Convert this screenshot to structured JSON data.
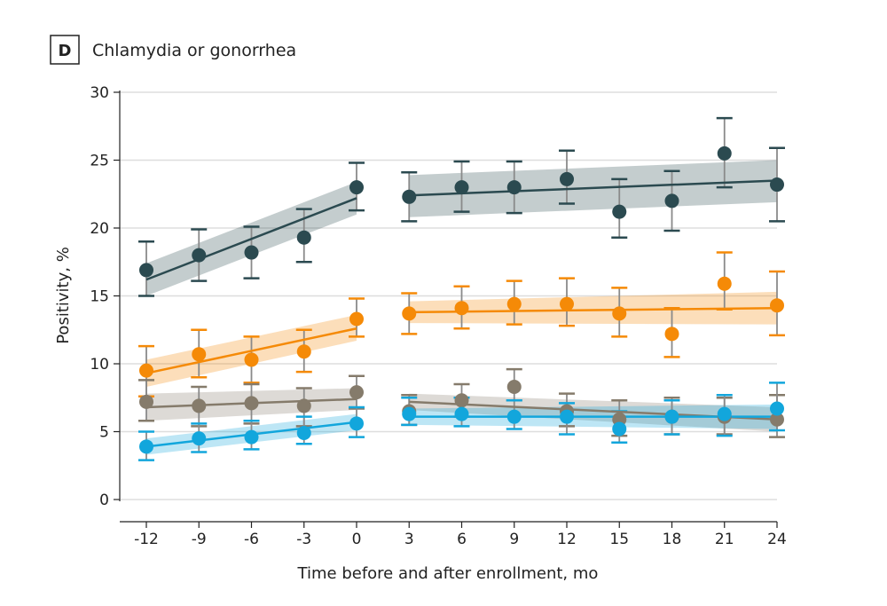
{
  "chart_data": {
    "type": "line",
    "panel_label": "D",
    "title": "Chlamydia or gonorrhea",
    "xlabel": "Time before and after enrollment, mo",
    "ylabel": "Positivity, %",
    "xlim": [
      -12,
      24
    ],
    "ylim": [
      0,
      30
    ],
    "x_ticks": [
      -12,
      -9,
      -6,
      -3,
      0,
      3,
      6,
      9,
      12,
      15,
      18,
      21,
      24
    ],
    "y_ticks": [
      0,
      5,
      10,
      15,
      20,
      25,
      30
    ],
    "grid": "horizontal",
    "x": [
      -12,
      -9,
      -6,
      -3,
      0,
      3,
      6,
      9,
      12,
      15,
      18,
      21,
      24
    ],
    "series": [
      {
        "color": "#2b4a50",
        "values": [
          16.9,
          18.0,
          18.2,
          19.3,
          23.0,
          22.3,
          23.0,
          23.0,
          23.6,
          21.2,
          22.0,
          25.5,
          23.2
        ],
        "ci_upper": [
          19.0,
          19.9,
          20.1,
          21.4,
          24.8,
          24.1,
          24.9,
          24.9,
          25.7,
          23.6,
          24.2,
          28.1,
          25.9
        ],
        "ci_lower": [
          15.0,
          16.1,
          16.3,
          17.5,
          21.3,
          20.5,
          21.2,
          21.1,
          21.8,
          19.3,
          19.8,
          23.0,
          20.5
        ],
        "fits": [
          {
            "x": [
              -12,
              0
            ],
            "y": [
              16.2,
              22.2
            ],
            "lo": [
              15.0,
              21.0
            ],
            "hi": [
              17.4,
              23.4
            ]
          },
          {
            "x": [
              3,
              24
            ],
            "y": [
              22.4,
              23.5
            ],
            "lo": [
              20.8,
              21.9
            ],
            "hi": [
              23.9,
              25.0
            ]
          }
        ]
      },
      {
        "color": "#f58a07",
        "values": [
          9.5,
          10.7,
          10.3,
          10.9,
          13.3,
          13.7,
          14.1,
          14.4,
          14.4,
          13.7,
          12.2,
          15.9,
          14.3
        ],
        "ci_upper": [
          11.3,
          12.5,
          12.0,
          12.5,
          14.8,
          15.2,
          15.7,
          16.1,
          16.3,
          15.6,
          14.1,
          18.2,
          16.8
        ],
        "ci_lower": [
          7.6,
          9.0,
          8.6,
          9.4,
          12.0,
          12.2,
          12.6,
          12.9,
          12.8,
          12.0,
          10.5,
          14.0,
          12.1
        ],
        "fits": [
          {
            "x": [
              -12,
              0
            ],
            "y": [
              9.3,
              12.6
            ],
            "lo": [
              8.3,
              11.7
            ],
            "hi": [
              10.3,
              13.6
            ]
          },
          {
            "x": [
              3,
              24
            ],
            "y": [
              13.8,
              14.1
            ],
            "lo": [
              13.0,
              12.9
            ],
            "hi": [
              14.6,
              15.3
            ]
          }
        ]
      },
      {
        "color": "#857b6b",
        "values": [
          7.2,
          6.9,
          7.1,
          6.9,
          7.9,
          6.5,
          7.3,
          8.3,
          6.5,
          5.9,
          6.1,
          6.1,
          5.9
        ],
        "ci_upper": [
          8.8,
          8.3,
          8.5,
          8.2,
          9.1,
          7.7,
          8.5,
          9.6,
          7.8,
          7.3,
          7.5,
          7.5,
          7.7
        ],
        "ci_lower": [
          5.8,
          5.4,
          5.6,
          5.4,
          6.7,
          5.5,
          6.1,
          7.3,
          5.4,
          4.7,
          4.8,
          4.8,
          4.6
        ],
        "fits": [
          {
            "x": [
              -12,
              0
            ],
            "y": [
              6.8,
              7.4
            ],
            "lo": [
              5.8,
              6.6
            ],
            "hi": [
              7.8,
              8.2
            ]
          },
          {
            "x": [
              3,
              24
            ],
            "y": [
              7.2,
              5.9
            ],
            "lo": [
              6.6,
              5.0
            ],
            "hi": [
              7.8,
              6.8
            ]
          }
        ]
      },
      {
        "color": "#12a6dc",
        "values": [
          3.9,
          4.5,
          4.6,
          4.9,
          5.6,
          6.3,
          6.3,
          6.1,
          6.1,
          5.2,
          6.1,
          6.3,
          6.7
        ],
        "ci_upper": [
          5.0,
          5.6,
          5.8,
          6.1,
          6.8,
          7.5,
          7.5,
          7.3,
          7.1,
          6.5,
          7.3,
          7.7,
          8.6
        ],
        "ci_lower": [
          2.9,
          3.5,
          3.7,
          4.1,
          4.6,
          5.5,
          5.4,
          5.2,
          4.8,
          4.2,
          4.8,
          4.7,
          5.1
        ],
        "fits": [
          {
            "x": [
              -12,
              0
            ],
            "y": [
              3.9,
              5.7
            ],
            "lo": [
              3.3,
              5.1
            ],
            "hi": [
              4.5,
              6.3
            ]
          },
          {
            "x": [
              3,
              24
            ],
            "y": [
              6.1,
              6.1
            ],
            "lo": [
              5.5,
              5.2
            ],
            "hi": [
              6.7,
              7.0
            ]
          }
        ]
      }
    ]
  }
}
